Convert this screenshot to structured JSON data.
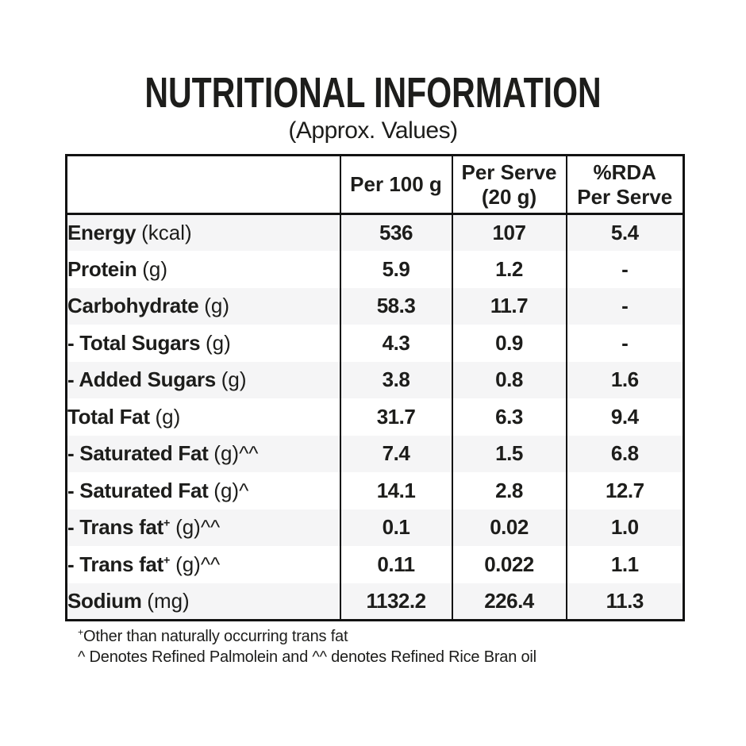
{
  "page": {
    "title": "NUTRITIONAL INFORMATION",
    "subtitle": "(Approx. Values)"
  },
  "table": {
    "header": {
      "col0": "",
      "col1": "Per 100 g",
      "col2_line1": "Per Serve",
      "col2_line2": "(20 g)",
      "col3_line1": "%RDA",
      "col3_line2": "Per Serve"
    },
    "rows": [
      {
        "name": "Energy",
        "sup": "",
        "unit": "(kcal)",
        "suffix": "",
        "per_100g": "536",
        "per_serve": "107",
        "rda": "5.4"
      },
      {
        "name": "Protein",
        "sup": "",
        "unit": "(g)",
        "suffix": "",
        "per_100g": "5.9",
        "per_serve": "1.2",
        "rda": "-"
      },
      {
        "name": "Carbohydrate",
        "sup": "",
        "unit": "(g)",
        "suffix": "",
        "per_100g": "58.3",
        "per_serve": "11.7",
        "rda": "-"
      },
      {
        "name": "- Total Sugars",
        "sup": "",
        "unit": "(g)",
        "suffix": "",
        "per_100g": "4.3",
        "per_serve": "0.9",
        "rda": "-"
      },
      {
        "name": "- Added Sugars",
        "sup": "",
        "unit": "(g)",
        "suffix": "",
        "per_100g": "3.8",
        "per_serve": "0.8",
        "rda": "1.6"
      },
      {
        "name": "Total Fat",
        "sup": "",
        "unit": "(g)",
        "suffix": "",
        "per_100g": "31.7",
        "per_serve": "6.3",
        "rda": "9.4"
      },
      {
        "name": "- Saturated Fat",
        "sup": "",
        "unit": "(g)",
        "suffix": "^^",
        "per_100g": "7.4",
        "per_serve": "1.5",
        "rda": "6.8"
      },
      {
        "name": "- Saturated Fat",
        "sup": "",
        "unit": "(g)",
        "suffix": "^",
        "per_100g": "14.1",
        "per_serve": "2.8",
        "rda": "12.7"
      },
      {
        "name": "- Trans fat",
        "sup": "+",
        "unit": "(g)",
        "suffix": "^^",
        "per_100g": "0.1",
        "per_serve": "0.02",
        "rda": "1.0"
      },
      {
        "name": "- Trans fat",
        "sup": "+",
        "unit": "(g)",
        "suffix": "^^",
        "per_100g": "0.11",
        "per_serve": "0.022",
        "rda": "1.1"
      },
      {
        "name": "Sodium",
        "sup": "",
        "unit": "(mg)",
        "suffix": "",
        "per_100g": "1132.2",
        "per_serve": "226.4",
        "rda": "11.3"
      }
    ]
  },
  "footnotes": {
    "line1_sup": "+",
    "line1_text": "Other than naturally occurring trans fat",
    "line2": "^ Denotes Refined Palmolein and ^^ denotes Refined Rice Bran oil"
  },
  "colors": {
    "text": "#1d1d1b",
    "border": "#121212",
    "row_alt": "#f5f5f6"
  }
}
